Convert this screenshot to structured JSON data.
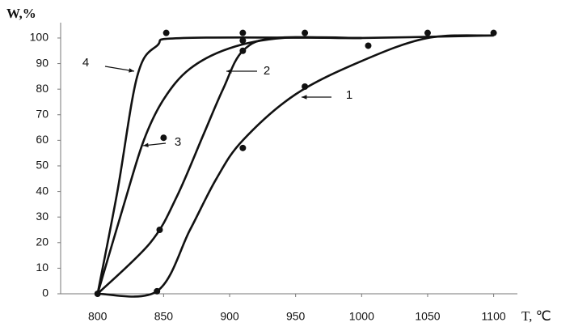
{
  "chart_data": {
    "type": "line",
    "y_label": "W,%",
    "x_label": "T, ℃",
    "xlim": [
      772,
      1118
    ],
    "xticks": [
      800,
      850,
      900,
      950,
      1000,
      1050,
      1100
    ],
    "ylim": [
      0,
      106
    ],
    "yticks": [
      0,
      10,
      20,
      30,
      40,
      50,
      60,
      70,
      80,
      90,
      100
    ],
    "color": "#111",
    "series": [
      {
        "name": "1",
        "x": [
          800,
          845,
          870,
          890,
          910,
          950,
          1000,
          1050,
          1100
        ],
        "values": [
          0,
          1,
          25,
          45,
          60,
          78,
          91,
          100,
          101
        ]
      },
      {
        "name": "2",
        "x": [
          800,
          840,
          860,
          880,
          895,
          910,
          935,
          1000,
          1100
        ],
        "values": [
          0,
          20,
          38,
          62,
          80,
          95,
          100,
          100,
          101
        ]
      },
      {
        "name": "3",
        "x": [
          800,
          820,
          835,
          850,
          870,
          900,
          940,
          1000
        ],
        "values": [
          0,
          35,
          60,
          76,
          88,
          96,
          100,
          100
        ]
      },
      {
        "name": "4",
        "x": [
          800,
          815,
          830,
          845,
          865,
          1000
        ],
        "values": [
          0,
          40,
          85,
          97,
          100,
          100
        ]
      }
    ],
    "points": {
      "x": [
        845,
        910,
        957,
        1005,
        1050,
        1100,
        847,
        910,
        910,
        850,
        852,
        910,
        957,
        800
      ],
      "values": [
        1,
        57,
        81,
        97,
        102,
        102,
        25,
        95,
        99,
        61,
        102,
        102,
        102,
        0
      ]
    }
  }
}
